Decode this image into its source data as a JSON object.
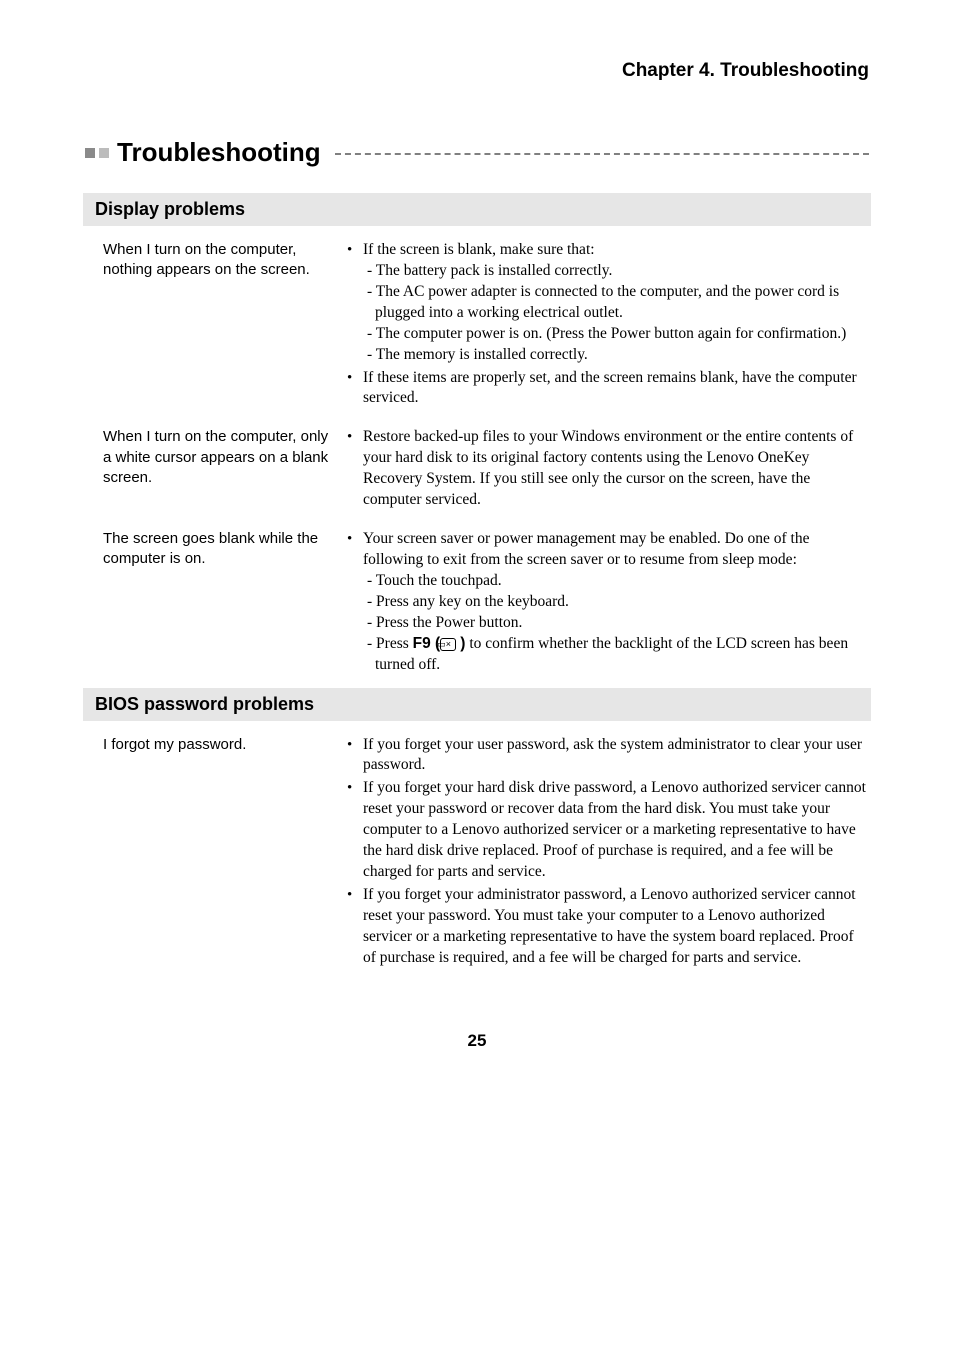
{
  "chapter_header": "Chapter 4. Troubleshooting",
  "section_title": "Troubleshooting",
  "categories": [
    {
      "header": "Display problems",
      "items": [
        {
          "question": "When I turn on the computer, nothing appears on the screen.",
          "bullets": [
            {
              "text": "If the screen is blank, make sure that:",
              "subs": [
                "- The battery pack is installed correctly.",
                "- The AC power adapter is connected to the computer, and the power cord is plugged into a working electrical outlet.",
                "- The computer power is on. (Press the Power button again for confirmation.)",
                "- The memory is installed correctly."
              ]
            },
            {
              "text": "If these items are properly set, and the screen remains blank, have the computer serviced."
            }
          ]
        },
        {
          "question": "When I turn on the computer, only a white cursor appears on a blank screen.",
          "bullets": [
            {
              "text": "Restore backed-up files to your Windows environment or the entire contents of your hard disk to its original factory contents using the Lenovo OneKey Recovery System. If you still see only the cursor on the screen, have the computer serviced."
            }
          ]
        },
        {
          "question": "The screen goes blank while the computer is on.",
          "bullets": [
            {
              "text": "Your screen saver or power management may be enabled. Do one of the following to exit from the screen saver or to resume from sleep mode:",
              "subs": [
                "- Touch the touchpad.",
                "- Press any key on the keyboard.",
                "- Press the Power button."
              ],
              "f9_sub": {
                "prefix": "- Press ",
                "key_bold": "F9 (",
                "glyph": "▭×",
                "key_bold_close": " )",
                "suffix": " to confirm whether the backlight of the LCD screen has been turned off."
              }
            }
          ]
        }
      ]
    },
    {
      "header": "BIOS password problems",
      "items": [
        {
          "question": "I forgot my password.",
          "bullets": [
            {
              "text": "If you forget your user password, ask the system administrator to clear your user password."
            },
            {
              "text": "If you forget your hard disk drive password, a Lenovo authorized servicer cannot reset your password or recover data from the hard disk. You must take your computer to a Lenovo authorized servicer or a marketing representative to have the hard disk drive replaced. Proof of purchase is required, and a fee will be charged for parts and service."
            },
            {
              "text": "If you forget your administrator password, a Lenovo authorized servicer cannot reset your password. You must take your computer to a Lenovo authorized servicer or a marketing representative to have the system board replaced. Proof of purchase is required, and a fee will be charged for parts and service."
            }
          ]
        }
      ]
    }
  ],
  "page_number": "25"
}
